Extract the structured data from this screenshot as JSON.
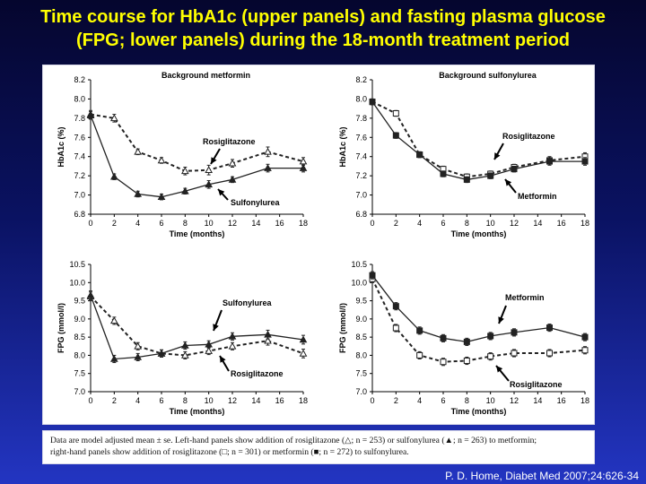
{
  "slide": {
    "title_line1": "Time course for HbA1c (upper panels) and fasting plasma glucose",
    "title_line2": "(FPG; lower panels) during the 18-month treatment period",
    "caption_line1": "Data are model adjusted mean ± se. Left-hand panels show addition of rosiglitazone (△; n = 253) or sulfonylurea (▲; n = 263) to metformin;",
    "caption_line2": "right-hand panels show addition of rosiglitazone (□; n = 301) or metformin (■; n = 272) to sulfonylurea.",
    "citation": "P. D. Home, Diabet Med 2007;24:626-34"
  },
  "colors": {
    "title": "#ffff00",
    "background_top": "#05062e",
    "background_bottom": "#2335c2",
    "series": "#222222"
  },
  "chart_data": [
    {
      "type": "line",
      "title": "Background metformin",
      "xlabel": "Time (months)",
      "ylabel": "HbA1c (%)",
      "xlim": [
        0,
        18
      ],
      "ylim": [
        6.8,
        8.2
      ],
      "xticks": [
        0,
        2,
        4,
        6,
        8,
        10,
        12,
        14,
        16,
        18
      ],
      "yticks": [
        "6.8",
        "7.0",
        "7.2",
        "7.4",
        "7.6",
        "7.8",
        "8.0",
        "8.2"
      ],
      "grid": false,
      "x": [
        0,
        2,
        4,
        6,
        8,
        10,
        12,
        15,
        18
      ],
      "series": [
        {
          "name": "Rosiglitazone",
          "marker": "open-triangle",
          "dash": true,
          "values": [
            7.84,
            7.8,
            7.45,
            7.36,
            7.25,
            7.26,
            7.33,
            7.45,
            7.35
          ],
          "err": [
            0.04,
            0.04,
            0.03,
            0.03,
            0.04,
            0.05,
            0.04,
            0.05,
            0.04
          ]
        },
        {
          "name": "Sulfonylurea",
          "marker": "filled-triangle",
          "dash": false,
          "values": [
            7.83,
            7.19,
            7.01,
            6.98,
            7.04,
            7.11,
            7.16,
            7.28,
            7.28
          ],
          "err": [
            0.04,
            0.03,
            0.03,
            0.03,
            0.03,
            0.04,
            0.03,
            0.04,
            0.04
          ]
        }
      ],
      "annotations": [
        {
          "text": "Rosiglitazone",
          "target_series": 0
        },
        {
          "text": "Sulfonylurea",
          "target_series": 1
        }
      ]
    },
    {
      "type": "line",
      "title": "Background sulfonylurea",
      "xlabel": "Time (months)",
      "ylabel": "HbA1c (%)",
      "xlim": [
        0,
        18
      ],
      "ylim": [
        6.8,
        8.2
      ],
      "xticks": [
        0,
        2,
        4,
        6,
        8,
        10,
        12,
        14,
        16,
        18
      ],
      "yticks": [
        "6.8",
        "7.0",
        "7.2",
        "7.4",
        "7.6",
        "7.8",
        "8.0",
        "8.2"
      ],
      "grid": false,
      "x": [
        0,
        2,
        4,
        6,
        8,
        10,
        12,
        15,
        18
      ],
      "series": [
        {
          "name": "Rosiglitazone",
          "marker": "open-square",
          "dash": true,
          "values": [
            7.97,
            7.85,
            7.42,
            7.27,
            7.19,
            7.22,
            7.29,
            7.36,
            7.4
          ],
          "err": [
            0.03,
            0.03,
            0.03,
            0.03,
            0.03,
            0.03,
            0.03,
            0.04,
            0.04
          ]
        },
        {
          "name": "Metformin",
          "marker": "filled-square",
          "dash": false,
          "values": [
            7.97,
            7.62,
            7.42,
            7.22,
            7.16,
            7.2,
            7.27,
            7.35,
            7.35
          ],
          "err": [
            0.03,
            0.03,
            0.03,
            0.03,
            0.03,
            0.03,
            0.03,
            0.04,
            0.04
          ]
        }
      ],
      "annotations": [
        {
          "text": "Rosiglitazone",
          "target_series": 0
        },
        {
          "text": "Metformin",
          "target_series": 1
        }
      ]
    },
    {
      "type": "line",
      "title": "",
      "xlabel": "Time (months)",
      "ylabel": "FPG (mmol/l)",
      "xlim": [
        0,
        18
      ],
      "ylim": [
        7.0,
        10.5
      ],
      "xticks": [
        0,
        2,
        4,
        6,
        8,
        10,
        12,
        14,
        16,
        18
      ],
      "yticks": [
        "7.0",
        "7.5",
        "8.0",
        "8.5",
        "9.0",
        "9.5",
        "10.0",
        "10.5"
      ],
      "grid": false,
      "x": [
        0,
        2,
        4,
        6,
        8,
        10,
        12,
        15,
        18
      ],
      "series": [
        {
          "name": "Rosiglitazone",
          "marker": "open-triangle",
          "dash": true,
          "values": [
            9.62,
            8.95,
            8.25,
            8.05,
            8.0,
            8.12,
            8.25,
            8.4,
            8.05
          ],
          "err": [
            0.12,
            0.1,
            0.1,
            0.1,
            0.1,
            0.1,
            0.1,
            0.12,
            0.12
          ]
        },
        {
          "name": "Sulfonylurea",
          "marker": "filled-triangle",
          "dash": false,
          "values": [
            9.65,
            7.9,
            7.95,
            8.05,
            8.27,
            8.3,
            8.52,
            8.57,
            8.43
          ],
          "err": [
            0.12,
            0.1,
            0.1,
            0.1,
            0.1,
            0.1,
            0.1,
            0.12,
            0.12
          ]
        }
      ],
      "annotations": [
        {
          "text": "Sulfonylurea",
          "target_series": 1
        },
        {
          "text": "Rosiglitazone",
          "target_series": 0
        }
      ]
    },
    {
      "type": "line",
      "title": "",
      "xlabel": "Time (months)",
      "ylabel": "FPG (mmol/l)",
      "xlim": [
        0,
        18
      ],
      "ylim": [
        7.0,
        10.5
      ],
      "xticks": [
        0,
        2,
        4,
        6,
        8,
        10,
        12,
        14,
        16,
        18
      ],
      "yticks": [
        "7.0",
        "7.5",
        "8.0",
        "8.5",
        "9.0",
        "9.5",
        "10.0",
        "10.5"
      ],
      "grid": false,
      "x": [
        0,
        2,
        4,
        6,
        8,
        10,
        12,
        15,
        18
      ],
      "series": [
        {
          "name": "Rosiglitazone",
          "marker": "open-square",
          "dash": true,
          "values": [
            10.1,
            8.75,
            8.0,
            7.82,
            7.85,
            7.97,
            8.06,
            8.06,
            8.14
          ],
          "err": [
            0.1,
            0.1,
            0.1,
            0.1,
            0.1,
            0.1,
            0.1,
            0.1,
            0.1
          ]
        },
        {
          "name": "Metformin",
          "marker": "filled-square",
          "dash": false,
          "values": [
            10.2,
            9.35,
            8.68,
            8.47,
            8.37,
            8.53,
            8.63,
            8.76,
            8.5
          ],
          "err": [
            0.1,
            0.1,
            0.1,
            0.1,
            0.1,
            0.1,
            0.1,
            0.1,
            0.1
          ]
        }
      ],
      "annotations": [
        {
          "text": "Metformin",
          "target_series": 1
        },
        {
          "text": "Rosiglitazone",
          "target_series": 0
        }
      ]
    }
  ]
}
